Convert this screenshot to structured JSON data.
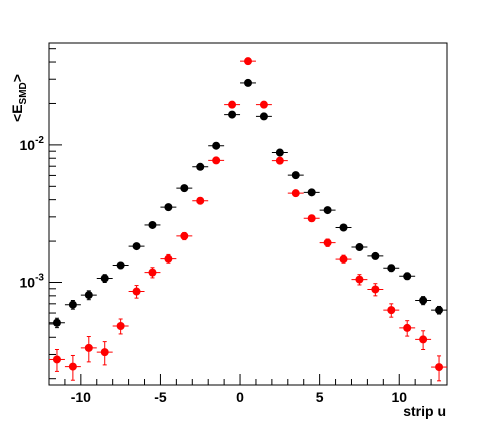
{
  "chart_data": {
    "type": "scatter",
    "xlabel": "strip u",
    "ylabel_main": "<E",
    "ylabel_sub": "SMD",
    "ylabel_close": ">",
    "xlim": [
      -12,
      13
    ],
    "ylim": [
      0.00018,
      0.055
    ],
    "yscale": "log",
    "x_ticks": [
      {
        "value": -10,
        "label": "-10"
      },
      {
        "value": -5,
        "label": "-5"
      },
      {
        "value": 0,
        "label": "0"
      },
      {
        "value": 5,
        "label": "5"
      },
      {
        "value": 10,
        "label": "10"
      }
    ],
    "y_ticks": [
      {
        "value": 0.01,
        "mantissa": "10",
        "exponent": "-2"
      },
      {
        "value": 0.001,
        "mantissa": "10",
        "exponent": "-3"
      }
    ],
    "series": [
      {
        "color": "#000000",
        "x": [
          -11.5,
          -10.5,
          -9.5,
          -8.5,
          -7.5,
          -6.5,
          -5.5,
          -4.5,
          -3.5,
          -2.5,
          -1.5,
          -0.5,
          0.5,
          1.5,
          2.5,
          3.5,
          4.5,
          5.5,
          6.5,
          7.5,
          8.5,
          9.5,
          10.5,
          11.5,
          12.5
        ],
        "y": [
          0.00051,
          0.00069,
          0.00081,
          0.00107,
          0.00133,
          0.00184,
          0.00262,
          0.00353,
          0.00485,
          0.00693,
          0.00986,
          0.0166,
          0.0282,
          0.0161,
          0.0088,
          0.00603,
          0.00452,
          0.00336,
          0.00251,
          0.00181,
          0.00156,
          0.00127,
          0.00111,
          0.00074,
          0.00063
        ],
        "yerr": [
          4e-05,
          5e-05,
          6e-05,
          7e-05,
          7e-05,
          8e-05,
          0.0001,
          0.00012,
          0.00015,
          0.0002,
          0.0003,
          0.0005,
          0.0008,
          0.0005,
          0.0003,
          0.0002,
          0.00015,
          0.00012,
          0.0001,
          8e-05,
          8e-05,
          7e-05,
          6e-05,
          5e-05,
          4e-05
        ]
      },
      {
        "color": "#ff0000",
        "x": [
          -11.5,
          -10.5,
          -9.5,
          -8.5,
          -7.5,
          -6.5,
          -5.5,
          -4.5,
          -3.5,
          -2.5,
          -1.5,
          -0.5,
          0.5,
          1.5,
          2.5,
          3.5,
          4.5,
          5.5,
          6.5,
          7.5,
          8.5,
          9.5,
          10.5,
          11.5,
          12.5
        ],
        "y": [
          0.000276,
          0.000245,
          0.000335,
          0.000312,
          0.000483,
          0.00086,
          0.00118,
          0.00149,
          0.00218,
          0.00393,
          0.00771,
          0.0196,
          0.0406,
          0.0196,
          0.00768,
          0.00446,
          0.00293,
          0.00195,
          0.00148,
          0.00105,
          0.00089,
          0.00063,
          0.000468,
          0.000386,
          0.000243
        ],
        "yerr": [
          5e-05,
          5e-05,
          7e-05,
          6e-05,
          6e-05,
          9e-05,
          0.0001,
          0.00011,
          0.00013,
          0.0002,
          0.0003,
          0.0007,
          0.0012,
          0.0007,
          0.0003,
          0.0002,
          0.00015,
          0.00012,
          0.0001,
          9e-05,
          9e-05,
          7e-05,
          6e-05,
          6e-05,
          5e-05
        ]
      }
    ],
    "grid": false,
    "legend": "none"
  }
}
